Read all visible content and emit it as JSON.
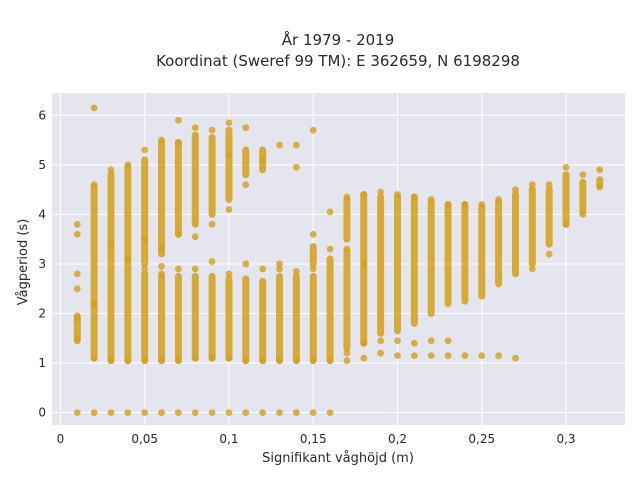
{
  "chart_data": {
    "type": "scatter",
    "title_line1": "År 1979 - 2019",
    "title_line2": "Koordinat (Sweref 99 TM): E 362659, N 6198298",
    "xlabel": "Signifikant våghöjd (m)",
    "ylabel": "Vågperiod (s)",
    "xlim": [
      -0.005,
      0.335
    ],
    "ylim": [
      -0.25,
      6.45
    ],
    "xticks": [
      0,
      0.05,
      0.1,
      0.15,
      0.2,
      0.25,
      0.3
    ],
    "xtick_labels": [
      "0",
      "0,05",
      "0,1",
      "0,15",
      "0,2",
      "0,25",
      "0,3"
    ],
    "yticks": [
      0,
      1,
      2,
      3,
      4,
      5,
      6
    ],
    "ytick_labels": [
      "0",
      "1",
      "2",
      "3",
      "4",
      "5",
      "6"
    ],
    "grid": true,
    "background": "#e5e5ef",
    "marker_color": "#d4a017",
    "series": [
      {
        "x": [
          0.01,
          0.01,
          0.01,
          0.01,
          0.01,
          0.01,
          0.01,
          0.02,
          0.02,
          0.02,
          0.02,
          0.02,
          0.03,
          0.03,
          0.03,
          0.03,
          0.04,
          0.04,
          0.04,
          0.04,
          0.05,
          0.05,
          0.05,
          0.05,
          0.05,
          0.06,
          0.06,
          0.06,
          0.06,
          0.06,
          0.06,
          0.07,
          0.07,
          0.07,
          0.07,
          0.07,
          0.07,
          0.08,
          0.08,
          0.08,
          0.08,
          0.08,
          0.09,
          0.09,
          0.09,
          0.09,
          0.09,
          0.1,
          0.1,
          0.1,
          0.1,
          0.1,
          0.1,
          0.11,
          0.11,
          0.11,
          0.11,
          0.11,
          0.12,
          0.12,
          0.12,
          0.12,
          0.13,
          0.13,
          0.13,
          0.13,
          0.13,
          0.14,
          0.14,
          0.14,
          0.14,
          0.14,
          0.15,
          0.15,
          0.15,
          0.15,
          0.15,
          0.16,
          0.16,
          0.16,
          0.16,
          0.17,
          0.17,
          0.17,
          0.17,
          0.18,
          0.18,
          0.18,
          0.18,
          0.19,
          0.19,
          0.19,
          0.2,
          0.2,
          0.2,
          0.21,
          0.21,
          0.21,
          0.22,
          0.22,
          0.22,
          0.23,
          0.23,
          0.23,
          0.24,
          0.24,
          0.25,
          0.25,
          0.26,
          0.26,
          0.27,
          0.27,
          0.28,
          0.28,
          0.29,
          0.29,
          0.3,
          0.3,
          0.31,
          0.31,
          0.32,
          0.32
        ],
        "y": [
          0,
          1.5,
          1.9,
          2.5,
          2.8,
          3.6,
          3.8,
          0,
          6.15,
          1.1,
          2.2,
          4.6,
          0,
          1.05,
          3.4,
          4.9,
          0,
          1.05,
          3.1,
          5.0,
          0,
          1.05,
          2.9,
          3.5,
          5.3,
          0,
          1.05,
          2.8,
          3.3,
          5.5,
          2.95,
          0,
          1.05,
          2.9,
          3.6,
          5.9,
          5.45,
          0,
          1.1,
          2.9,
          3.55,
          5.75,
          0,
          1.1,
          3.05,
          3.8,
          5.7,
          0,
          1.1,
          2.8,
          4.1,
          5.85,
          5.2,
          0,
          1.05,
          3.0,
          4.6,
          5.75,
          0,
          1.05,
          2.9,
          5.1,
          0,
          1.05,
          2.9,
          3.0,
          5.4,
          0,
          1.05,
          2.85,
          4.95,
          5.4,
          0,
          1.05,
          2.9,
          3.6,
          5.7,
          0,
          1.05,
          3.3,
          4.05,
          1.05,
          1.2,
          3.3,
          4.35,
          1.1,
          1.4,
          3.0,
          4.4,
          1.2,
          1.45,
          4.45,
          1.15,
          1.45,
          4.4,
          1.15,
          1.4,
          4.35,
          1.15,
          1.45,
          4.3,
          1.15,
          1.45,
          4.2,
          1.15,
          4.2,
          1.15,
          4.2,
          1.15,
          4.3,
          1.1,
          4.5,
          2.9,
          4.6,
          3.2,
          4.6,
          3.8,
          4.95,
          4.0,
          4.8,
          4.55,
          4.9
        ],
        "columns": [
          {
            "x": 0.01,
            "y_lo": 1.45,
            "y_hi": 1.95
          },
          {
            "x": 0.02,
            "y_lo": 1.1,
            "y_hi": 2.2
          },
          {
            "x": 0.02,
            "y_lo": 2.2,
            "y_hi": 4.55
          },
          {
            "x": 0.03,
            "y_lo": 1.05,
            "y_hi": 4.8
          },
          {
            "x": 0.04,
            "y_lo": 1.05,
            "y_hi": 4.95
          },
          {
            "x": 0.05,
            "y_lo": 1.05,
            "y_hi": 2.8
          },
          {
            "x": 0.05,
            "y_lo": 3.0,
            "y_hi": 5.1
          },
          {
            "x": 0.06,
            "y_lo": 1.05,
            "y_hi": 2.75
          },
          {
            "x": 0.06,
            "y_lo": 3.2,
            "y_hi": 5.45
          },
          {
            "x": 0.07,
            "y_lo": 1.05,
            "y_hi": 2.75
          },
          {
            "x": 0.07,
            "y_lo": 3.6,
            "y_hi": 5.45
          },
          {
            "x": 0.08,
            "y_lo": 1.1,
            "y_hi": 2.75
          },
          {
            "x": 0.08,
            "y_lo": 3.8,
            "y_hi": 5.6
          },
          {
            "x": 0.09,
            "y_lo": 1.1,
            "y_hi": 2.75
          },
          {
            "x": 0.09,
            "y_lo": 4.0,
            "y_hi": 5.55
          },
          {
            "x": 0.1,
            "y_lo": 1.1,
            "y_hi": 2.7
          },
          {
            "x": 0.1,
            "y_lo": 4.3,
            "y_hi": 5.7
          },
          {
            "x": 0.11,
            "y_lo": 1.05,
            "y_hi": 2.7
          },
          {
            "x": 0.11,
            "y_lo": 4.8,
            "y_hi": 5.3
          },
          {
            "x": 0.12,
            "y_lo": 1.05,
            "y_hi": 2.65
          },
          {
            "x": 0.12,
            "y_lo": 4.9,
            "y_hi": 5.3
          },
          {
            "x": 0.13,
            "y_lo": 1.05,
            "y_hi": 2.75
          },
          {
            "x": 0.14,
            "y_lo": 1.05,
            "y_hi": 2.75
          },
          {
            "x": 0.15,
            "y_lo": 1.05,
            "y_hi": 2.75
          },
          {
            "x": 0.15,
            "y_lo": 3.0,
            "y_hi": 3.35
          },
          {
            "x": 0.16,
            "y_lo": 1.05,
            "y_hi": 3.1
          },
          {
            "x": 0.17,
            "y_lo": 1.3,
            "y_hi": 3.25
          },
          {
            "x": 0.17,
            "y_lo": 3.5,
            "y_hi": 4.3
          },
          {
            "x": 0.18,
            "y_lo": 1.4,
            "y_hi": 4.4
          },
          {
            "x": 0.19,
            "y_lo": 1.6,
            "y_hi": 4.35
          },
          {
            "x": 0.2,
            "y_lo": 1.65,
            "y_hi": 4.35
          },
          {
            "x": 0.21,
            "y_lo": 1.8,
            "y_hi": 4.35
          },
          {
            "x": 0.22,
            "y_lo": 2.0,
            "y_hi": 4.25
          },
          {
            "x": 0.23,
            "y_lo": 2.2,
            "y_hi": 4.2
          },
          {
            "x": 0.24,
            "y_lo": 2.25,
            "y_hi": 4.2
          },
          {
            "x": 0.25,
            "y_lo": 2.35,
            "y_hi": 4.15
          },
          {
            "x": 0.26,
            "y_lo": 2.6,
            "y_hi": 4.25
          },
          {
            "x": 0.27,
            "y_lo": 2.8,
            "y_hi": 4.4
          },
          {
            "x": 0.28,
            "y_lo": 3.0,
            "y_hi": 4.5
          },
          {
            "x": 0.29,
            "y_lo": 3.4,
            "y_hi": 4.5
          },
          {
            "x": 0.3,
            "y_lo": 3.8,
            "y_hi": 4.8
          },
          {
            "x": 0.31,
            "y_lo": 4.05,
            "y_hi": 4.65
          },
          {
            "x": 0.32,
            "y_lo": 4.6,
            "y_hi": 4.7
          }
        ]
      }
    ]
  }
}
